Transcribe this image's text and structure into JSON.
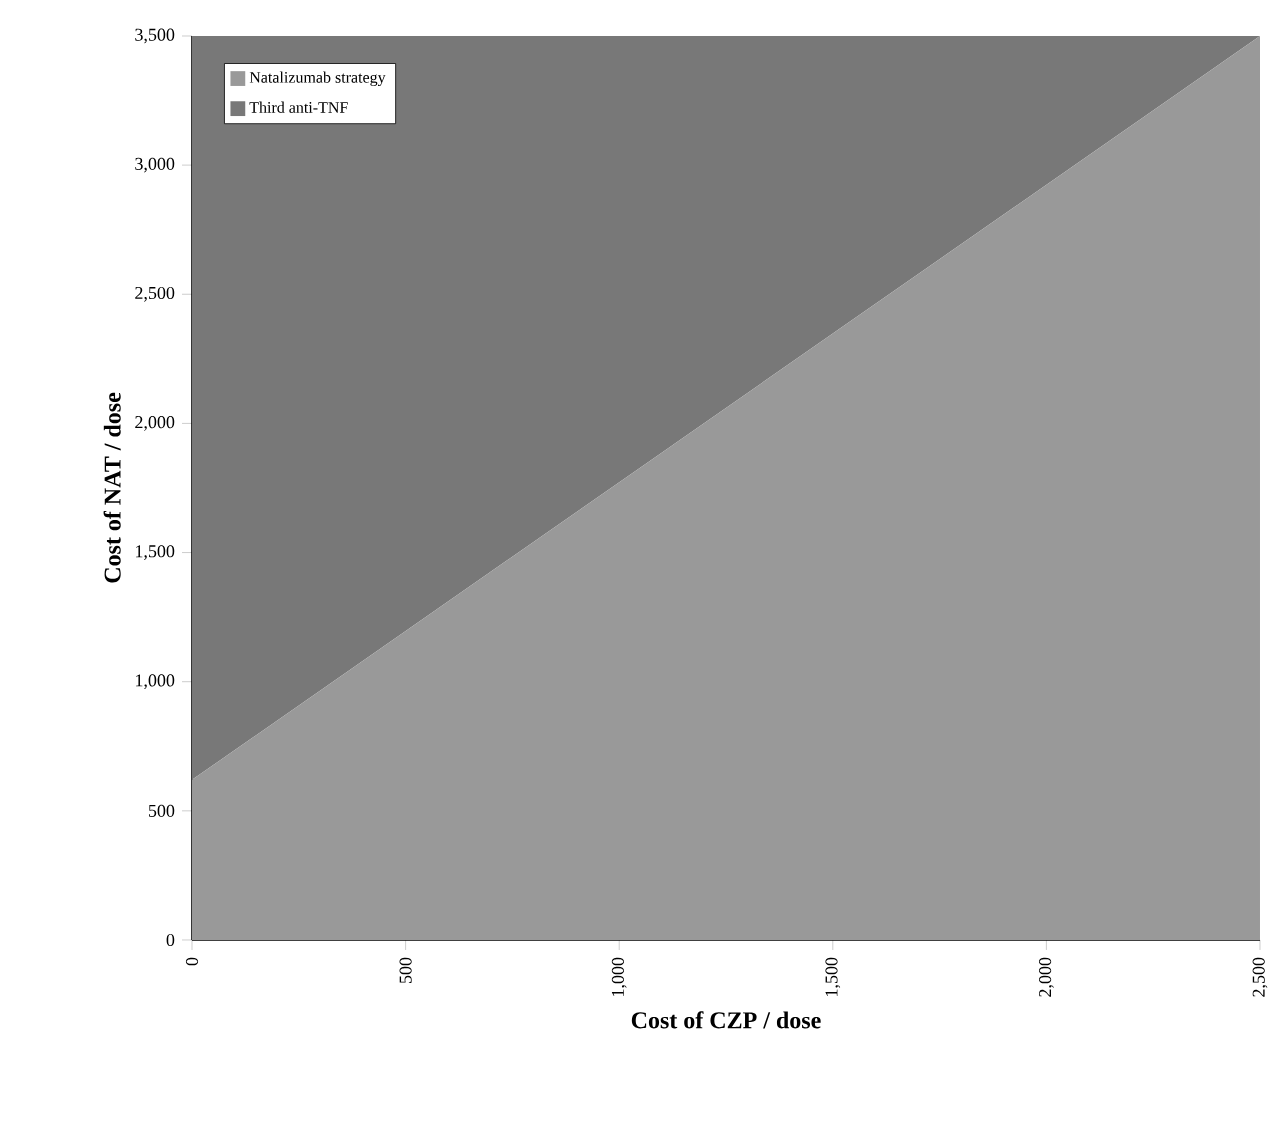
{
  "chart_data": {
    "type": "area",
    "stacked": true,
    "xlabel": "Cost of CZP / dose",
    "ylabel": "Cost of NAT / dose",
    "x": [
      0,
      2500
    ],
    "series": [
      {
        "name": "Natalizumab strategy",
        "color": "#999999",
        "values": [
          620,
          3500
        ]
      },
      {
        "name": "Third anti-TNF",
        "color": "#787878",
        "values": [
          2880,
          0
        ]
      }
    ],
    "xlim": [
      0,
      2500
    ],
    "ylim": [
      0,
      3500
    ],
    "xticks": [
      0,
      {
        "value": 500,
        "label": "500"
      },
      {
        "value": 1000,
        "label": "1,000"
      },
      {
        "value": 1500,
        "label": "1,500"
      },
      {
        "value": 2000,
        "label": "2,000"
      },
      {
        "value": 2500,
        "label": "2,500"
      }
    ],
    "yticks": [
      0,
      500,
      {
        "value": 1000,
        "label": "1,000"
      },
      {
        "value": 1500,
        "label": "1,500"
      },
      {
        "value": 2000,
        "label": "2,000"
      },
      {
        "value": 2500,
        "label": "2,500"
      },
      {
        "value": 3000,
        "label": "3,000"
      },
      {
        "value": 3500,
        "label": "3,500"
      }
    ],
    "legend": "top left",
    "grid": false
  }
}
